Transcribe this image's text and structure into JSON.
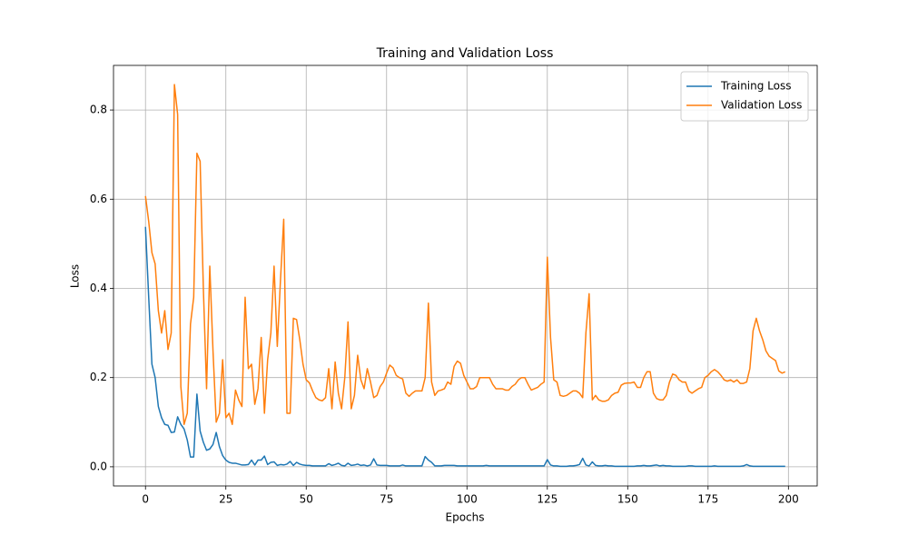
{
  "chart_data": {
    "type": "line",
    "title": "Training and Validation Loss",
    "xlabel": "Epochs",
    "ylabel": "Loss",
    "x": [
      0,
      1,
      2,
      3,
      4,
      5,
      6,
      7,
      8,
      9,
      10,
      11,
      12,
      13,
      14,
      15,
      16,
      17,
      18,
      19,
      20,
      21,
      22,
      23,
      24,
      25,
      26,
      27,
      28,
      29,
      30,
      31,
      32,
      33,
      34,
      35,
      36,
      37,
      38,
      39,
      40,
      41,
      42,
      43,
      44,
      45,
      46,
      47,
      48,
      49,
      50,
      51,
      52,
      53,
      54,
      55,
      56,
      57,
      58,
      59,
      60,
      61,
      62,
      63,
      64,
      65,
      66,
      67,
      68,
      69,
      70,
      71,
      72,
      73,
      74,
      75,
      76,
      77,
      78,
      79,
      80,
      81,
      82,
      83,
      84,
      85,
      86,
      87,
      88,
      89,
      90,
      91,
      92,
      93,
      94,
      95,
      96,
      97,
      98,
      99,
      100,
      101,
      102,
      103,
      104,
      105,
      106,
      107,
      108,
      109,
      110,
      111,
      112,
      113,
      114,
      115,
      116,
      117,
      118,
      119,
      120,
      121,
      122,
      123,
      124,
      125,
      126,
      127,
      128,
      129,
      130,
      131,
      132,
      133,
      134,
      135,
      136,
      137,
      138,
      139,
      140,
      141,
      142,
      143,
      144,
      145,
      146,
      147,
      148,
      149,
      150,
      151,
      152,
      153,
      154,
      155,
      156,
      157,
      158,
      159,
      160,
      161,
      162,
      163,
      164,
      165,
      166,
      167,
      168,
      169,
      170,
      171,
      172,
      173,
      174,
      175,
      176,
      177,
      178,
      179,
      180,
      181,
      182,
      183,
      184,
      185,
      186,
      187,
      188,
      189,
      190,
      191,
      192,
      193,
      194,
      195,
      196,
      197,
      198,
      199
    ],
    "series": [
      {
        "name": "Training Loss",
        "color": "#1f77b4",
        "values": [
          0.538,
          0.38,
          0.23,
          0.2,
          0.135,
          0.11,
          0.095,
          0.093,
          0.077,
          0.078,
          0.112,
          0.095,
          0.085,
          0.06,
          0.022,
          0.022,
          0.163,
          0.08,
          0.055,
          0.037,
          0.04,
          0.05,
          0.077,
          0.045,
          0.025,
          0.015,
          0.01,
          0.008,
          0.008,
          0.006,
          0.004,
          0.004,
          0.005,
          0.015,
          0.004,
          0.015,
          0.015,
          0.024,
          0.005,
          0.01,
          0.011,
          0.003,
          0.005,
          0.004,
          0.006,
          0.012,
          0.003,
          0.01,
          0.006,
          0.004,
          0.003,
          0.003,
          0.002,
          0.002,
          0.002,
          0.002,
          0.002,
          0.007,
          0.003,
          0.005,
          0.008,
          0.003,
          0.002,
          0.008,
          0.003,
          0.004,
          0.006,
          0.003,
          0.004,
          0.002,
          0.004,
          0.018,
          0.004,
          0.003,
          0.003,
          0.003,
          0.002,
          0.002,
          0.002,
          0.002,
          0.004,
          0.002,
          0.002,
          0.002,
          0.002,
          0.002,
          0.002,
          0.023,
          0.015,
          0.01,
          0.002,
          0.002,
          0.002,
          0.003,
          0.003,
          0.003,
          0.003,
          0.002,
          0.002,
          0.002,
          0.002,
          0.002,
          0.002,
          0.002,
          0.002,
          0.002,
          0.003,
          0.002,
          0.002,
          0.002,
          0.002,
          0.002,
          0.002,
          0.002,
          0.002,
          0.002,
          0.002,
          0.002,
          0.002,
          0.002,
          0.002,
          0.002,
          0.002,
          0.002,
          0.002,
          0.016,
          0.004,
          0.002,
          0.002,
          0.001,
          0.001,
          0.001,
          0.002,
          0.002,
          0.003,
          0.005,
          0.019,
          0.004,
          0.002,
          0.011,
          0.003,
          0.002,
          0.002,
          0.003,
          0.002,
          0.002,
          0.001,
          0.001,
          0.001,
          0.001,
          0.001,
          0.001,
          0.001,
          0.002,
          0.002,
          0.003,
          0.002,
          0.002,
          0.003,
          0.004,
          0.002,
          0.003,
          0.002,
          0.002,
          0.001,
          0.001,
          0.001,
          0.001,
          0.001,
          0.002,
          0.002,
          0.001,
          0.001,
          0.001,
          0.001,
          0.001,
          0.001,
          0.002,
          0.001,
          0.001,
          0.001,
          0.001,
          0.001,
          0.001,
          0.001,
          0.001,
          0.002,
          0.005,
          0.002,
          0.001,
          0.001,
          0.001,
          0.001,
          0.001,
          0.001,
          0.001,
          0.001,
          0.001,
          0.001,
          0.001
        ]
      },
      {
        "name": "Validation Loss",
        "color": "#ff7f0e",
        "values": [
          0.607,
          0.55,
          0.48,
          0.455,
          0.35,
          0.3,
          0.35,
          0.263,
          0.3,
          0.857,
          0.79,
          0.18,
          0.095,
          0.12,
          0.32,
          0.38,
          0.703,
          0.685,
          0.4,
          0.175,
          0.45,
          0.26,
          0.1,
          0.12,
          0.24,
          0.11,
          0.12,
          0.095,
          0.172,
          0.15,
          0.135,
          0.38,
          0.22,
          0.23,
          0.14,
          0.175,
          0.29,
          0.12,
          0.24,
          0.3,
          0.45,
          0.27,
          0.42,
          0.555,
          0.12,
          0.12,
          0.333,
          0.33,
          0.285,
          0.23,
          0.195,
          0.188,
          0.17,
          0.155,
          0.15,
          0.148,
          0.155,
          0.22,
          0.13,
          0.235,
          0.165,
          0.13,
          0.2,
          0.325,
          0.13,
          0.16,
          0.25,
          0.195,
          0.175,
          0.22,
          0.19,
          0.155,
          0.16,
          0.18,
          0.19,
          0.21,
          0.228,
          0.222,
          0.205,
          0.2,
          0.197,
          0.165,
          0.158,
          0.165,
          0.17,
          0.17,
          0.17,
          0.2,
          0.367,
          0.19,
          0.16,
          0.17,
          0.172,
          0.175,
          0.19,
          0.185,
          0.225,
          0.237,
          0.232,
          0.205,
          0.19,
          0.175,
          0.175,
          0.18,
          0.2,
          0.2,
          0.2,
          0.2,
          0.185,
          0.175,
          0.175,
          0.175,
          0.172,
          0.172,
          0.18,
          0.185,
          0.195,
          0.2,
          0.2,
          0.185,
          0.172,
          0.175,
          0.178,
          0.185,
          0.19,
          0.47,
          0.29,
          0.195,
          0.19,
          0.16,
          0.158,
          0.16,
          0.165,
          0.17,
          0.17,
          0.165,
          0.155,
          0.3,
          0.388,
          0.15,
          0.16,
          0.15,
          0.147,
          0.147,
          0.15,
          0.16,
          0.165,
          0.167,
          0.183,
          0.187,
          0.188,
          0.188,
          0.19,
          0.178,
          0.178,
          0.2,
          0.213,
          0.213,
          0.165,
          0.153,
          0.15,
          0.15,
          0.16,
          0.19,
          0.208,
          0.205,
          0.195,
          0.19,
          0.19,
          0.17,
          0.165,
          0.17,
          0.175,
          0.178,
          0.2,
          0.205,
          0.213,
          0.218,
          0.213,
          0.205,
          0.195,
          0.192,
          0.195,
          0.19,
          0.195,
          0.187,
          0.187,
          0.19,
          0.22,
          0.305,
          0.333,
          0.305,
          0.285,
          0.26,
          0.248,
          0.243,
          0.238,
          0.215,
          0.21,
          0.213
        ]
      }
    ],
    "xlim": [
      -9.95,
      208.95
    ],
    "ylim": [
      -0.043,
      0.9
    ],
    "xticks": [
      0,
      25,
      50,
      75,
      100,
      125,
      150,
      175,
      200
    ],
    "yticks": [
      {
        "value": 0,
        "label": "0.0"
      },
      0.2,
      0.4,
      0.6,
      0.8
    ],
    "grid": true,
    "legend": "upper right"
  }
}
